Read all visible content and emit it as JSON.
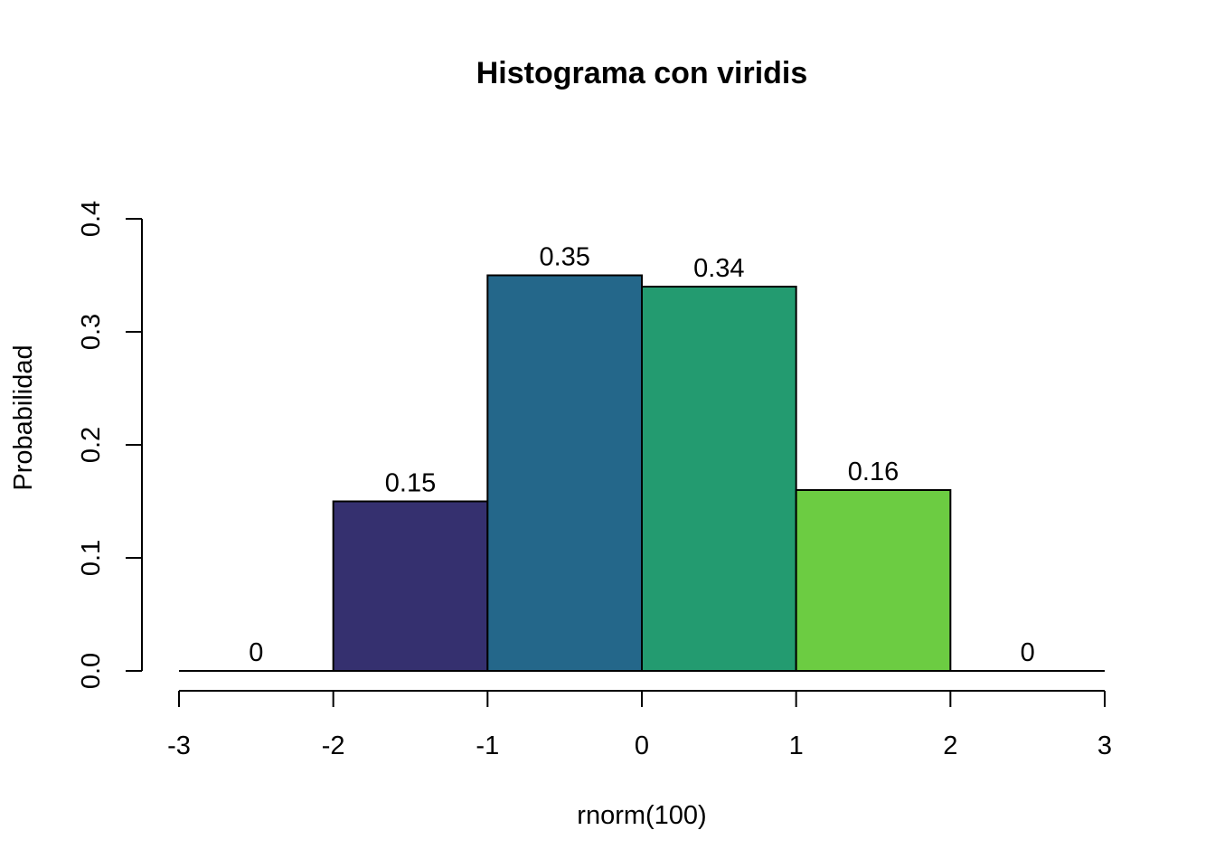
{
  "chart_data": {
    "type": "bar",
    "title": "Histograma con viridis",
    "xlabel": "rnorm(100)",
    "ylabel": "Probabilidad",
    "bin_edges": [
      -3,
      -2,
      -1,
      0,
      1,
      2,
      3
    ],
    "values": [
      0,
      0.15,
      0.35,
      0.34,
      0.16,
      0
    ],
    "data_labels": [
      "0",
      "0.15",
      "0.35",
      "0.34",
      "0.16",
      "0"
    ],
    "colors": [
      "#440154",
      "#35306F",
      "#24678A",
      "#239B70",
      "#6CCC42",
      "#FDE725"
    ],
    "xlim": [
      -3,
      3
    ],
    "ylim": [
      0,
      0.4
    ],
    "xticks": [
      -3,
      -2,
      -1,
      0,
      1,
      2,
      3
    ],
    "xtick_labels": [
      "-3",
      "-2",
      "-1",
      "0",
      "1",
      "2",
      "3"
    ],
    "yticks": [
      0,
      0.1,
      0.2,
      0.3,
      0.4
    ],
    "ytick_labels": [
      "0.0",
      "0.1",
      "0.2",
      "0.3",
      "0.4"
    ],
    "grid": false,
    "legend": "none"
  }
}
